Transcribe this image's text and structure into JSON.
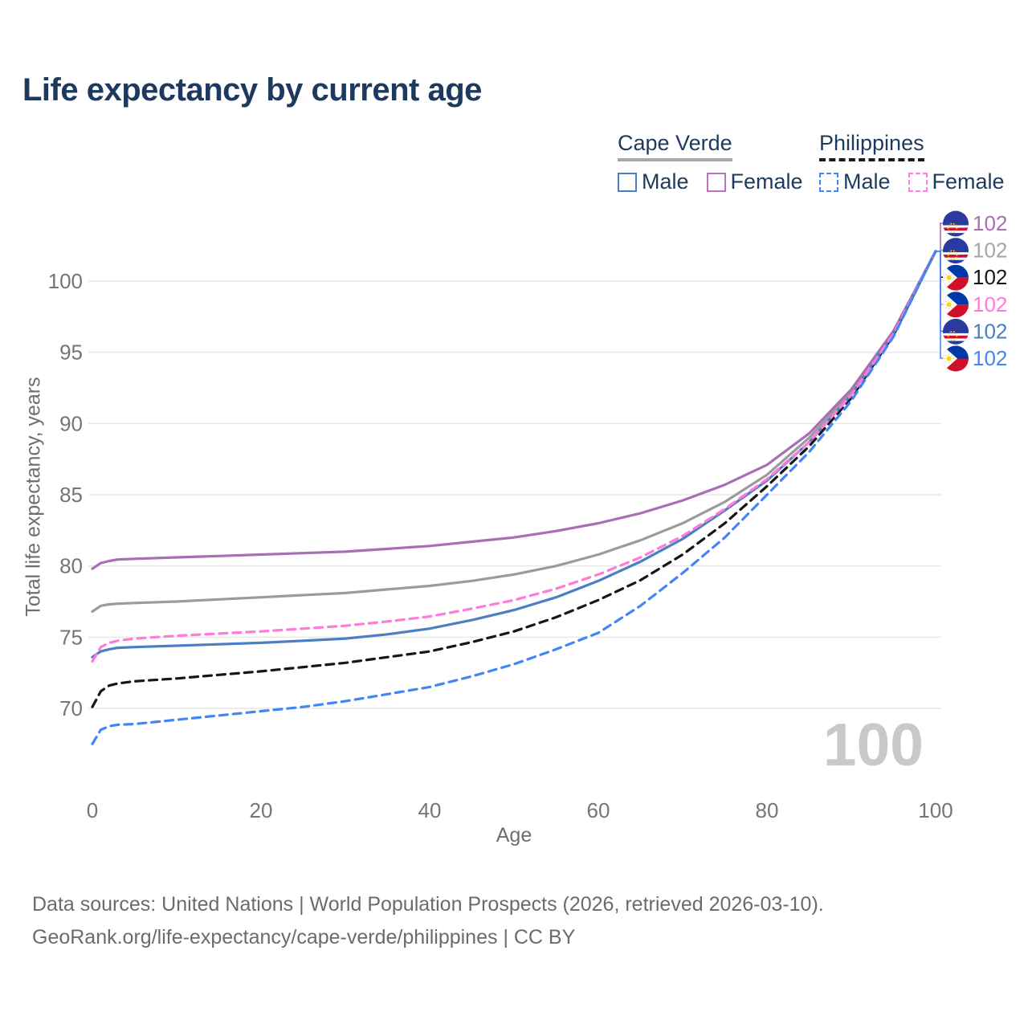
{
  "title": "Life expectancy by current age",
  "legend": {
    "groups": [
      {
        "country": "Cape Verde",
        "line_style": "solid",
        "underline_color": "#a8a8a8",
        "items": [
          {
            "label": "Male",
            "color": "#4b7ec2"
          },
          {
            "label": "Female",
            "color": "#b873ba"
          }
        ]
      },
      {
        "country": "Philippines",
        "line_style": "dashed",
        "underline_color": "#1a1a1a",
        "items": [
          {
            "label": "Male",
            "color": "#4286f5"
          },
          {
            "label": "Female",
            "color": "#ff7ee0"
          }
        ]
      }
    ]
  },
  "chart_data": {
    "type": "line",
    "title": "Life expectancy by current age",
    "xlabel": "Age",
    "ylabel": "Total life expectancy, years",
    "xlim": [
      0,
      100
    ],
    "ylim": [
      67,
      103
    ],
    "xticks": [
      0,
      20,
      40,
      60,
      80,
      100
    ],
    "yticks": [
      70,
      75,
      80,
      85,
      90,
      95,
      100
    ],
    "grid": "horizontal",
    "legend_position": "top-right",
    "watermark_age": "100",
    "x": [
      0,
      1,
      2,
      3,
      5,
      10,
      15,
      20,
      25,
      30,
      35,
      40,
      45,
      50,
      55,
      60,
      65,
      70,
      75,
      80,
      85,
      90,
      95,
      100
    ],
    "series": [
      {
        "name": "Cape Verde Female",
        "country": "Cape Verde",
        "sex": "Female",
        "line_style": "solid",
        "color": "#a96fb4",
        "flag": "cv",
        "end_label": "102",
        "end_label_color": "#a96fb4",
        "values": [
          79.8,
          80.2,
          80.35,
          80.45,
          80.5,
          80.6,
          80.7,
          80.8,
          80.9,
          81.0,
          81.2,
          81.4,
          81.7,
          82.0,
          82.45,
          83.0,
          83.7,
          84.6,
          85.7,
          87.1,
          89.3,
          92.4,
          96.5,
          102.1
        ]
      },
      {
        "name": "Cape Verde Both sexes",
        "country": "Cape Verde",
        "sex": "Both",
        "line_style": "solid",
        "color": "#9b9b9b",
        "flag": "cv",
        "end_label": "102",
        "end_label_color": "#a6a6a6",
        "values": [
          76.8,
          77.2,
          77.3,
          77.35,
          77.4,
          77.5,
          77.65,
          77.8,
          77.95,
          78.1,
          78.35,
          78.6,
          78.95,
          79.4,
          80.0,
          80.8,
          81.8,
          83.0,
          84.5,
          86.4,
          89.0,
          92.2,
          96.4,
          102.1
        ]
      },
      {
        "name": "Philippines Both sexes",
        "country": "Philippines",
        "sex": "Both",
        "line_style": "dashed",
        "color": "#161616",
        "flag": "ph",
        "end_label": "102",
        "end_label_color": "#161616",
        "values": [
          70.1,
          71.2,
          71.6,
          71.75,
          71.9,
          72.1,
          72.35,
          72.6,
          72.9,
          73.2,
          73.6,
          74.0,
          74.65,
          75.4,
          76.4,
          77.6,
          79.0,
          80.8,
          83.0,
          85.6,
          88.4,
          91.8,
          96.2,
          102.1
        ]
      },
      {
        "name": "Philippines Female",
        "country": "Philippines",
        "sex": "Female",
        "line_style": "dashed",
        "color": "#ff7ad9",
        "flag": "ph",
        "end_label": "102",
        "end_label_color": "#ff7ae0",
        "values": [
          73.3,
          74.3,
          74.6,
          74.75,
          74.9,
          75.1,
          75.25,
          75.4,
          75.6,
          75.8,
          76.1,
          76.45,
          77.0,
          77.6,
          78.4,
          79.4,
          80.6,
          82.1,
          84.0,
          86.1,
          88.7,
          92.0,
          96.3,
          102.1
        ]
      },
      {
        "name": "Cape Verde Male",
        "country": "Cape Verde",
        "sex": "Male",
        "line_style": "solid",
        "color": "#4b7ec2",
        "flag": "cv",
        "end_label": "102",
        "end_label_color": "#4b7ec2",
        "values": [
          73.6,
          74.0,
          74.15,
          74.25,
          74.3,
          74.4,
          74.5,
          74.6,
          74.75,
          74.9,
          75.2,
          75.6,
          76.2,
          76.9,
          77.8,
          78.95,
          80.3,
          81.9,
          83.9,
          86.0,
          88.7,
          92.0,
          96.3,
          102.1
        ]
      },
      {
        "name": "Philippines Male",
        "country": "Philippines",
        "sex": "Male",
        "line_style": "dashed",
        "color": "#4286f5",
        "flag": "ph",
        "end_label": "102",
        "end_label_color": "#4286f5",
        "values": [
          67.5,
          68.5,
          68.75,
          68.85,
          68.9,
          69.2,
          69.5,
          69.8,
          70.1,
          70.5,
          71.0,
          71.5,
          72.25,
          73.1,
          74.15,
          75.3,
          77.2,
          79.5,
          82.0,
          85.0,
          88.0,
          91.6,
          96.1,
          102.1
        ]
      }
    ]
  },
  "footer": {
    "line1": "Data sources: United Nations | World Population Prospects (2026, retrieved 2026-03-10).",
    "line2": "GeoRank.org/life-expectancy/cape-verde/philippines | CC BY"
  }
}
